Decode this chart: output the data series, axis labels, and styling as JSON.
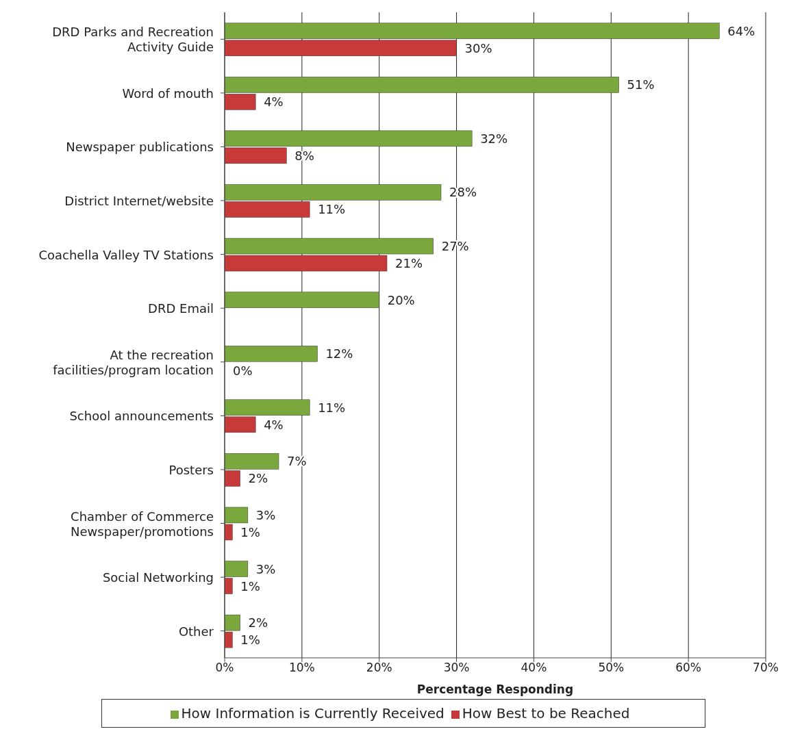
{
  "chart_data": {
    "type": "bar",
    "orientation": "horizontal",
    "xlabel": "Percentage Responding",
    "categories": [
      "DRD Parks and Recreation Activity Guide",
      "Word of mouth",
      "Newspaper publications",
      "District Internet/website",
      "Coachella Valley TV Stations",
      "DRD Email",
      "At the recreation facilities/program location",
      "School announcements",
      "Posters",
      "Chamber of Commerce Newspaper/promotions",
      "Social Networking",
      "Other"
    ],
    "series": [
      {
        "name": "How Information is Currently Received",
        "color": "#7aa83c",
        "values": [
          64,
          51,
          32,
          28,
          27,
          20,
          12,
          11,
          7,
          3,
          3,
          2
        ],
        "value_labels": [
          "64%",
          "51%",
          "32%",
          "28%",
          "27%",
          "20%",
          "12%",
          "11%",
          "7%",
          "3%",
          "3%",
          "2%"
        ]
      },
      {
        "name": "How Best to be Reached",
        "color": "#c8393a",
        "values": [
          30,
          4,
          8,
          11,
          21,
          null,
          0,
          4,
          2,
          1,
          1,
          1
        ],
        "value_labels": [
          "30%",
          "4%",
          "8%",
          "11%",
          "21%",
          null,
          "0%",
          "4%",
          "2%",
          "1%",
          "1%",
          "1%"
        ]
      }
    ],
    "xlim": [
      0,
      70
    ],
    "xticks": [
      {
        "value": 0,
        "label": "0%"
      },
      {
        "value": 10,
        "label": "10%"
      },
      {
        "value": 20,
        "label": "20%"
      },
      {
        "value": 30,
        "label": "30%"
      },
      {
        "value": 40,
        "label": "40%"
      },
      {
        "value": 50,
        "label": "50%"
      },
      {
        "value": 60,
        "label": "60%"
      },
      {
        "value": 70,
        "label": "70%"
      }
    ],
    "grid": "x",
    "legend": "bottom"
  }
}
